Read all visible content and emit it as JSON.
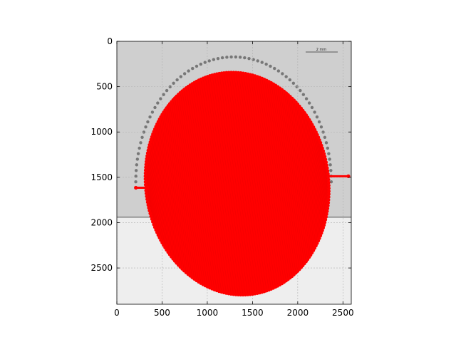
{
  "chart_data": {
    "type": "scatter",
    "title": "",
    "xlabel": "",
    "ylabel": "",
    "xlim": [
      0,
      2592
    ],
    "ylim": [
      2900,
      0
    ],
    "y_inverted": true,
    "xticks": [
      0,
      500,
      1000,
      1500,
      2000,
      2500
    ],
    "yticks": [
      0,
      500,
      1000,
      1500,
      2000,
      2500
    ],
    "grid": true,
    "background_image": {
      "description_visible": "grayscale microscope image of a curved droplet edge",
      "image_bottom_y": 1940,
      "scale_bar_label": "2 mm"
    },
    "series": [
      {
        "kind": "ellipse-fit",
        "color": "#ff0000",
        "center": [
          1330,
          1570
        ],
        "radius_x": 1010,
        "radius_y": 1230,
        "tilt_deg": -8,
        "marker": "o",
        "n_points": 240
      },
      {
        "kind": "baseline-segments",
        "color": "#ff0000",
        "segments": [
          [
            [
              210,
              1615
            ],
            [
              340,
              1615
            ]
          ],
          [
            [
              2340,
              1488
            ],
            [
              2560,
              1488
            ]
          ]
        ]
      }
    ]
  }
}
